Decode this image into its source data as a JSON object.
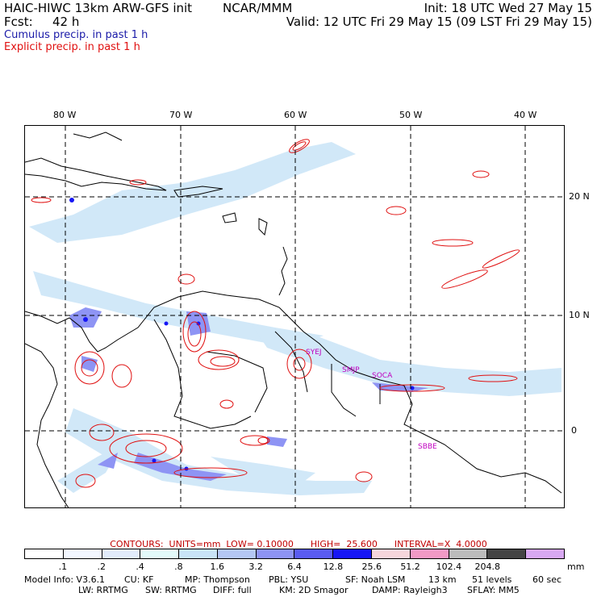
{
  "header": {
    "model": "HAIC-HIWC 13km ARW-GFS init",
    "org": "NCAR/MMM",
    "init": "Init: 18 UTC Wed 27 May 15",
    "fcst_label": "Fcst:",
    "fcst_value": "42 h",
    "valid": "Valid: 12 UTC Fri 29 May 15 (09 LST Fri 29 May 15)",
    "cumulus": "Cumulus precip. in past 1 h",
    "explicit": "Explicit precip. in past 1 h"
  },
  "map": {
    "lon_labels": [
      "80 W",
      "70 W",
      "60 W",
      "50 W",
      "40 W"
    ],
    "lat_labels": [
      "20 N",
      "10 N",
      "0"
    ],
    "sites": [
      "SYEJ",
      "SMJP",
      "SOCA",
      "SBBE"
    ]
  },
  "contours_text": "CONTOURS:  UNITS=mm  LOW= 0.10000      HIGH=  25.600      INTERVAL=X  4.0000",
  "colorbar": {
    "colors": [
      "#ffffff",
      "#f3f7ff",
      "#e2ecfb",
      "#e3fafa",
      "#c9e4f7",
      "#b4c7f4",
      "#8e94f4",
      "#5a5cf2",
      "#1616f5",
      "#f6d6dc",
      "#f29ac6",
      "#bcbcbc",
      "#444444",
      "#d8a8f2"
    ],
    "ticks": [
      ".1",
      ".2",
      ".4",
      ".8",
      "1.6",
      "3.2",
      "6.4",
      "12.8",
      "25.6",
      "51.2",
      "102.4",
      "204.8"
    ],
    "unit": "mm"
  },
  "info": {
    "model_info": "Model Info: V3.6.1",
    "cu": "CU: KF",
    "mp": "MP: Thompson",
    "pbl": "PBL: YSU",
    "sf": "SF: Noah LSM",
    "res": "13 km",
    "levels": "51 levels",
    "dt": "60 sec",
    "lw": "LW: RRTMG",
    "sw": "SW: RRTMG",
    "diff": "DIFF: full",
    "km": "KM: 2D Smagor",
    "damp": "DAMP: Rayleigh3",
    "sflay": "SFLAY: MM5"
  }
}
